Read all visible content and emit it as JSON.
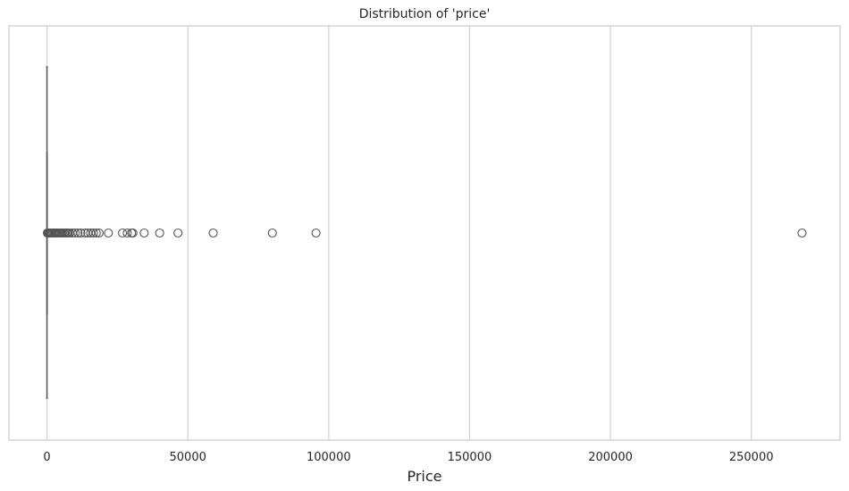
{
  "chart_data": {
    "type": "boxplot",
    "title": "Distribution of 'price'",
    "xlabel": "Price",
    "ylabel": "",
    "orientation": "horizontal",
    "xlim": [
      -13500,
      281500
    ],
    "xticks": [
      0,
      50000,
      100000,
      150000,
      200000,
      250000
    ],
    "xtick_labels": [
      "0",
      "50000",
      "100000",
      "150000",
      "200000",
      "250000"
    ],
    "grid": true,
    "grid_axis": "x",
    "box": {
      "q1": 10,
      "median": 25,
      "q3": 60,
      "whisker_low": 0,
      "whisker_high": 130
    },
    "outliers": [
      150,
      300,
      500,
      700,
      900,
      1200,
      1500,
      1800,
      2200,
      2600,
      3000,
      3500,
      4000,
      4500,
      5000,
      5500,
      6000,
      6500,
      7000,
      7500,
      8000,
      9000,
      10000,
      11000,
      12000,
      13500,
      14500,
      15500,
      16500,
      17500,
      18500,
      21800,
      26800,
      28500,
      30000,
      30500,
      34500,
      40000,
      46500,
      59000,
      80000,
      95500,
      268000
    ],
    "colors": {
      "box_line": "#555555",
      "outlier_edge": "#555555",
      "grid": "#d4d4d4",
      "frame": "#d4d4d4"
    }
  }
}
